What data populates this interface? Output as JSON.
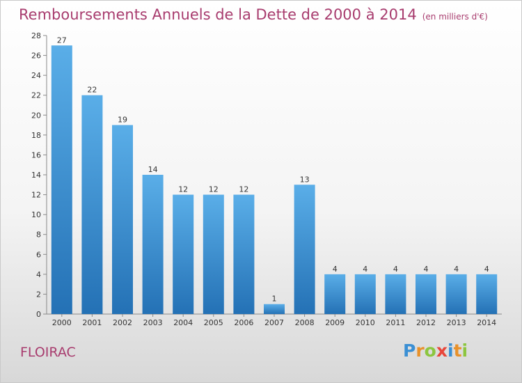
{
  "header": {
    "title": "Remboursements Annuels de la Dette de 2000 à 2014",
    "subtitle": "(en milliers d'€)"
  },
  "footer": {
    "commune": "FLOIRAC",
    "brand_letters": [
      {
        "char": "P",
        "color": "#3a8fd4"
      },
      {
        "char": "r",
        "color": "#e8912a"
      },
      {
        "char": "o",
        "color": "#8cc63f"
      },
      {
        "char": "x",
        "color": "#e8463a"
      },
      {
        "char": "i",
        "color": "#3a8fd4"
      },
      {
        "char": "t",
        "color": "#e8912a"
      },
      {
        "char": "i",
        "color": "#8cc63f"
      }
    ]
  },
  "chart_data": {
    "type": "bar",
    "title": "Remboursements Annuels de la Dette de 2000 à 2014",
    "subtitle": "(en milliers d'€)",
    "xlabel": "",
    "ylabel": "",
    "categories": [
      "2000",
      "2001",
      "2002",
      "2003",
      "2004",
      "2005",
      "2006",
      "2007",
      "2008",
      "2009",
      "2010",
      "2011",
      "2012",
      "2013",
      "2014"
    ],
    "values": [
      27,
      22,
      19,
      14,
      12,
      12,
      12,
      1,
      13,
      4,
      4,
      4,
      4,
      4,
      4
    ],
    "ylim": [
      0,
      28
    ],
    "yticks": [
      0,
      2,
      4,
      6,
      8,
      10,
      12,
      14,
      16,
      18,
      20,
      22,
      24,
      26,
      28
    ],
    "grid": false,
    "bar_color_top": "#5aaee8",
    "bar_color_bottom": "#2471b5"
  }
}
